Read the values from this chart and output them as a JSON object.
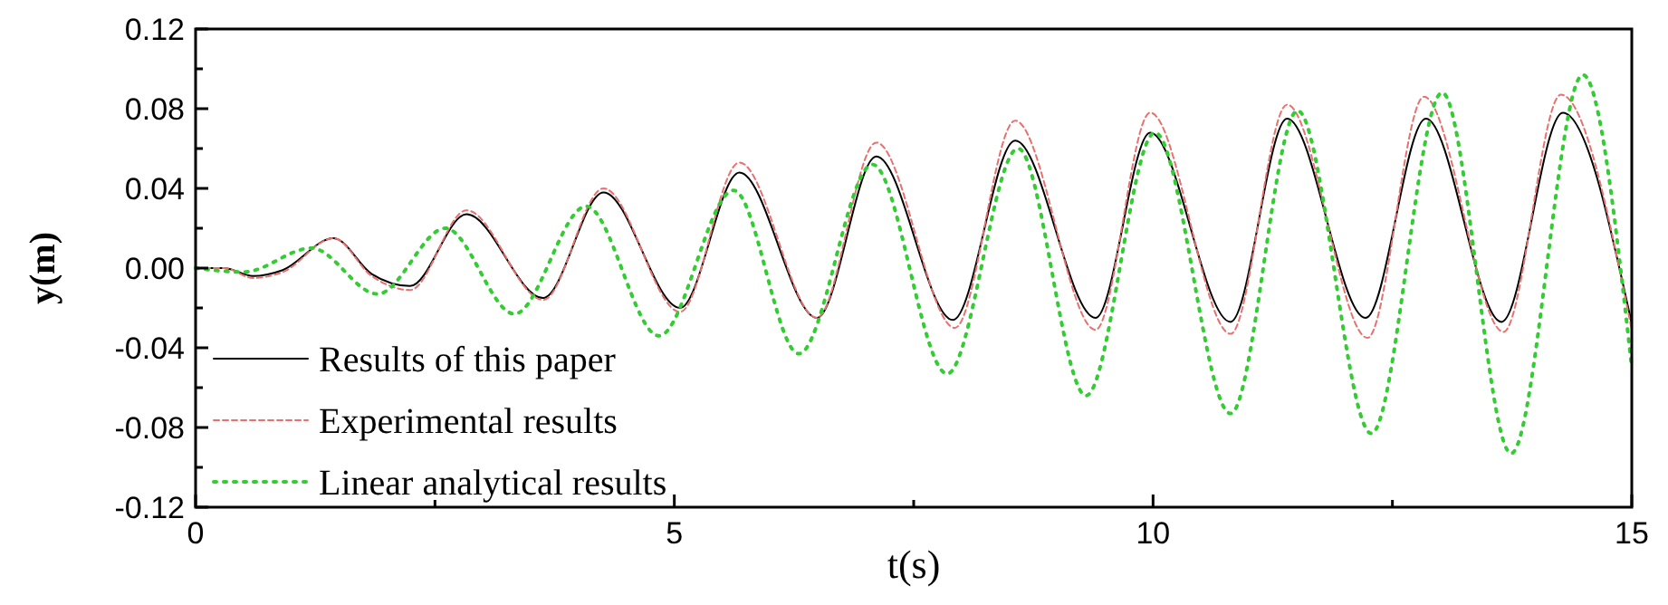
{
  "chart_data": {
    "type": "line",
    "xlabel": "t(s)",
    "ylabel": "y(m)",
    "xlim": [
      0,
      15
    ],
    "ylim": [
      -0.12,
      0.12
    ],
    "xticks": [
      0,
      {
        "value": 2.5,
        "label": null
      },
      5,
      {
        "value": 7.5,
        "label": null
      },
      10,
      {
        "value": 12.5,
        "label": null
      },
      15
    ],
    "yticks": [
      -0.12,
      {
        "value": -0.1,
        "label": null
      },
      -0.08,
      {
        "value": -0.06,
        "label": null
      },
      -0.04,
      {
        "value": -0.02,
        "label": null
      },
      {
        "value": 0,
        "label": "0.00"
      },
      {
        "value": 0.02,
        "label": null
      },
      0.04,
      {
        "value": 0.06,
        "label": null
      },
      0.08,
      {
        "value": 0.1,
        "label": null
      },
      0.12
    ],
    "grid": false,
    "legend": "bottom left",
    "series": [
      {
        "name": "Results of this paper",
        "color": "#000000",
        "line_style": "solid",
        "x": [
          0,
          0.3,
          0.6,
          0.91,
          1.44,
          1.84,
          2.24,
          2.83,
          3.63,
          4.26,
          5.06,
          5.68,
          6.49,
          7.11,
          7.91,
          8.56,
          9.4,
          9.97,
          10.81,
          11.4,
          12.22,
          12.85,
          13.64,
          14.28,
          15
        ],
        "values": [
          0,
          0,
          -0.004,
          -0.001,
          0.015,
          -0.003,
          -0.009,
          0.027,
          -0.015,
          0.038,
          -0.02,
          0.048,
          -0.025,
          0.056,
          -0.026,
          0.064,
          -0.025,
          0.068,
          -0.027,
          0.075,
          -0.025,
          0.075,
          -0.027,
          0.078,
          -0.028
        ]
      },
      {
        "name": "Experimental results",
        "color": "#e8706f",
        "line_style": "dashed",
        "x": [
          0,
          0.3,
          0.6,
          0.91,
          1.44,
          1.84,
          2.24,
          2.83,
          3.63,
          4.26,
          5.06,
          5.68,
          6.49,
          7.11,
          7.93,
          8.56,
          9.4,
          9.97,
          10.81,
          11.4,
          12.24,
          12.83,
          13.66,
          14.26,
          15
        ],
        "values": [
          0,
          0,
          -0.005,
          -0.002,
          0.015,
          -0.004,
          -0.011,
          0.029,
          -0.016,
          0.04,
          -0.022,
          0.053,
          -0.025,
          0.063,
          -0.03,
          0.074,
          -0.031,
          0.078,
          -0.033,
          0.082,
          -0.035,
          0.086,
          -0.032,
          0.087,
          -0.031
        ]
      },
      {
        "name": "Linear analytical results",
        "color": "#33cc33",
        "line_style": "dotted",
        "x": [
          0,
          0.5,
          1.21,
          1.9,
          2.61,
          3.33,
          4.08,
          4.84,
          5.62,
          6.3,
          7.07,
          7.85,
          8.59,
          9.3,
          10.02,
          10.81,
          11.51,
          12.28,
          13.02,
          13.74,
          14.49,
          15
        ],
        "values": [
          0,
          -0.002,
          0.01,
          -0.013,
          0.02,
          -0.023,
          0.031,
          -0.034,
          0.039,
          -0.043,
          0.052,
          -0.053,
          0.06,
          -0.064,
          0.068,
          -0.073,
          0.079,
          -0.083,
          0.088,
          -0.093,
          0.097,
          -0.05
        ]
      }
    ]
  }
}
